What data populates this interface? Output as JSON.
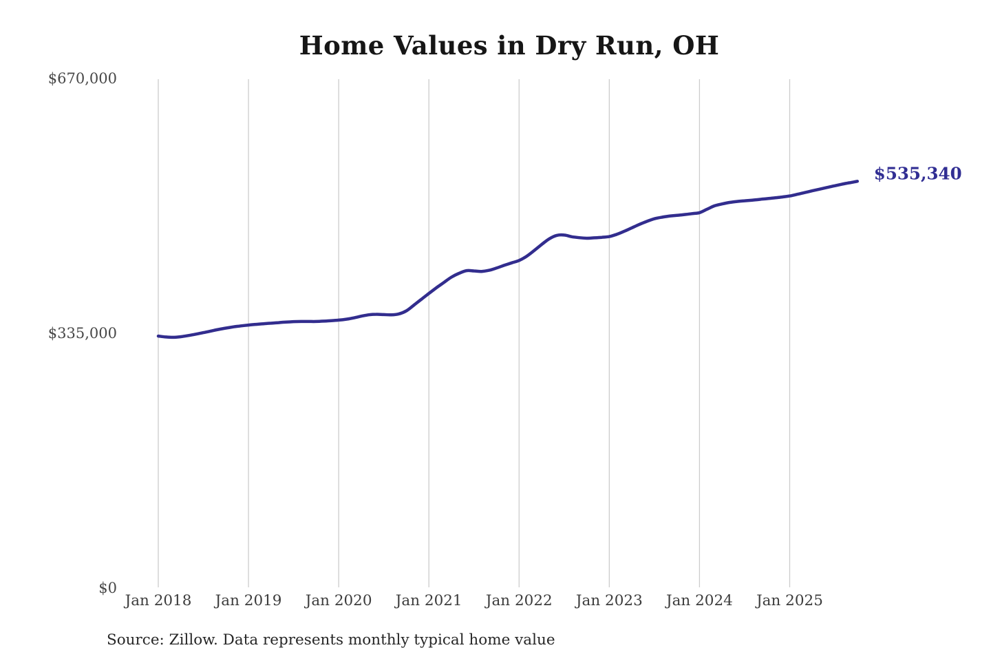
{
  "page": {
    "background": "#ffffff"
  },
  "chart_data": {
    "type": "line",
    "title": "Home Values in Dry Run, OH",
    "source_note": "Source: Zillow. Data represents monthly typical home value",
    "series_name": "Monthly typical home value",
    "end_label": "$535,340",
    "end_value": 535340,
    "ylim": [
      0,
      670000
    ],
    "grid": "vertical-only",
    "legend": "none",
    "line_color": "#322d8e",
    "end_label_color": "#312e93",
    "grid_color": "#cccccc",
    "x_monthly_from": "2018-01",
    "x_monthly_to": "2025-10",
    "x_tick_labels": [
      "Jan 2018",
      "Jan 2019",
      "Jan 2020",
      "Jan 2021",
      "Jan 2022",
      "Jan 2023",
      "Jan 2024",
      "Jan 2025"
    ],
    "y_ticks": [
      {
        "value": 670000,
        "label": "$670,000"
      },
      {
        "value": 335000,
        "label": "$335,000"
      },
      {
        "value": 0,
        "label": "$0"
      }
    ],
    "values": [
      331300,
      330100,
      329600,
      330500,
      332000,
      333800,
      335800,
      337900,
      340000,
      341800,
      343400,
      344700,
      345800,
      346700,
      347500,
      348300,
      349000,
      349700,
      350300,
      350500,
      350500,
      350500,
      351000,
      351600,
      352300,
      353500,
      355200,
      357500,
      359300,
      360000,
      359600,
      359300,
      360500,
      364500,
      372000,
      379800,
      387500,
      395000,
      402000,
      409000,
      414000,
      417500,
      417200,
      416500,
      418000,
      421000,
      424500,
      427800,
      431000,
      436500,
      444000,
      452000,
      459500,
      464000,
      464500,
      462300,
      461000,
      460300,
      460800,
      461500,
      462500,
      465500,
      469500,
      474000,
      478500,
      482500,
      486000,
      488000,
      489500,
      490500,
      491500,
      492700,
      494000,
      498500,
      503000,
      505500,
      507500,
      508800,
      509700,
      510500,
      511500,
      512500,
      513500,
      514700,
      516000,
      518200,
      520500,
      522800,
      525000,
      527300,
      529500,
      531600,
      533500,
      535340
    ]
  }
}
